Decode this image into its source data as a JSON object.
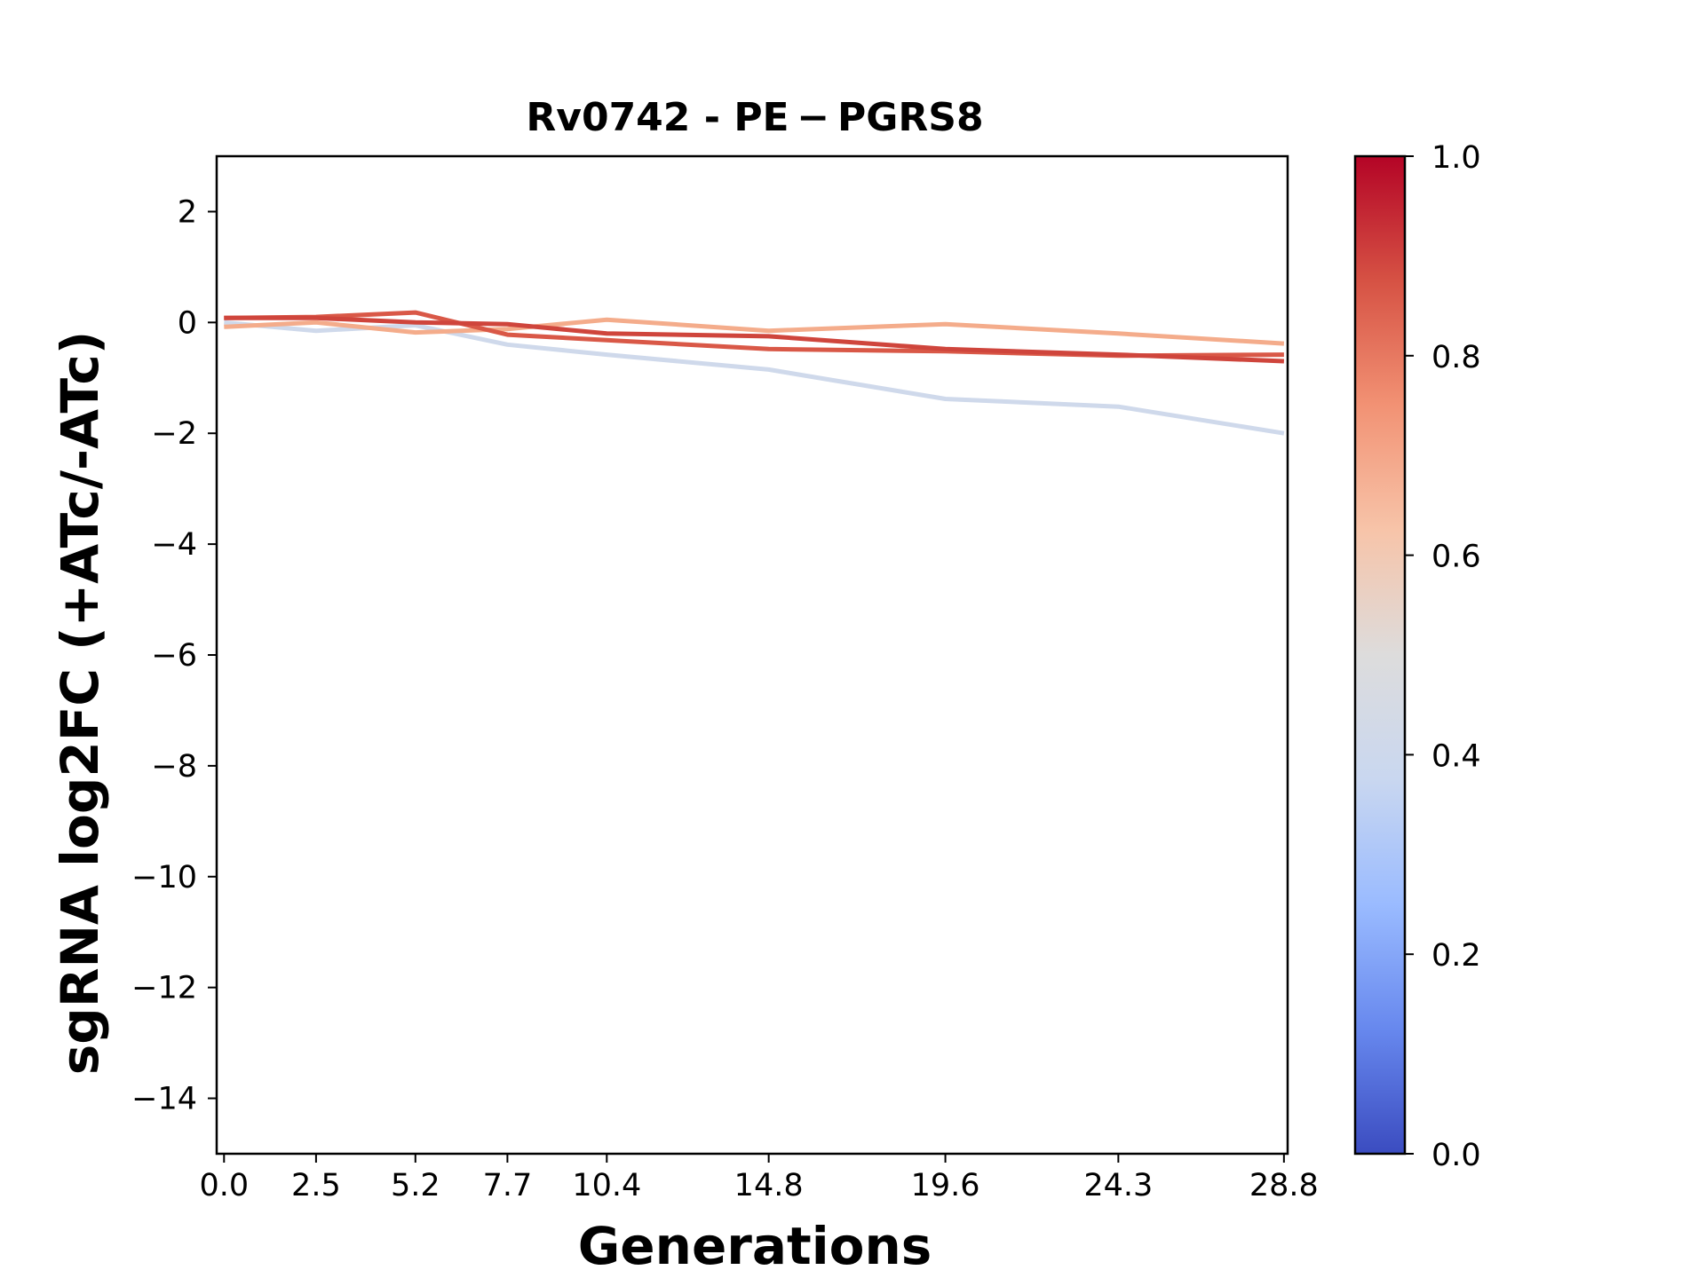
{
  "chart_data": {
    "type": "line",
    "title": "Rv0742 - PE − PGRS8",
    "xlabel": "Generations",
    "ylabel": "sgRNA log2FC (+ATc/-ATc)",
    "x": [
      0.0,
      2.5,
      5.2,
      7.7,
      10.4,
      14.8,
      19.6,
      24.3,
      28.8
    ],
    "x_tick_labels": [
      "0.0",
      "2.5",
      "5.2",
      "7.7",
      "10.4",
      "14.8",
      "19.6",
      "24.3",
      "28.8"
    ],
    "xlim": [
      -0.2,
      28.9
    ],
    "ylim": [
      -15,
      3
    ],
    "y_ticks": [
      2,
      0,
      -2,
      -4,
      -6,
      -8,
      -10,
      -12,
      -14
    ],
    "y_tick_labels": [
      "2",
      "0",
      "−2",
      "−4",
      "−6",
      "−8",
      "−10",
      "−12",
      "−14"
    ],
    "grid": false,
    "legend": "none",
    "series": [
      {
        "color_value": 0.42,
        "color": "#cfd9eb",
        "values": [
          0.0,
          -0.15,
          -0.05,
          -0.4,
          -0.58,
          -0.85,
          -1.38,
          -1.52,
          -2.0
        ]
      },
      {
        "color_value": 0.72,
        "color": "#f4ac8b",
        "values": [
          -0.08,
          0.0,
          -0.18,
          -0.12,
          0.05,
          -0.15,
          -0.03,
          -0.2,
          -0.38
        ]
      },
      {
        "color_value": 0.88,
        "color": "#d95847",
        "values": [
          0.08,
          0.1,
          0.18,
          -0.22,
          -0.32,
          -0.48,
          -0.52,
          -0.6,
          -0.58
        ]
      },
      {
        "color_value": 0.92,
        "color": "#cf453c",
        "values": [
          0.08,
          0.08,
          0.0,
          -0.03,
          -0.2,
          -0.25,
          -0.48,
          -0.58,
          -0.7
        ]
      }
    ],
    "colorbar": {
      "colormap": "coolwarm",
      "range": [
        0.0,
        1.0
      ],
      "ticks": [
        0.0,
        0.2,
        0.4,
        0.6,
        0.8,
        1.0
      ],
      "tick_labels": [
        "0.0",
        "0.2",
        "0.4",
        "0.6",
        "0.8",
        "1.0"
      ],
      "colors": [
        "#3b4cc0",
        "#6788ee",
        "#9abbff",
        "#c9d7f0",
        "#dddcdc",
        "#f7c4a9",
        "#f29274",
        "#d65244",
        "#b40426"
      ]
    }
  }
}
